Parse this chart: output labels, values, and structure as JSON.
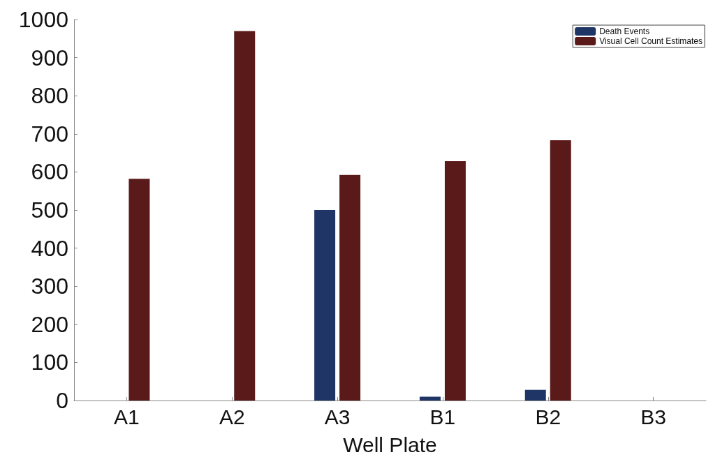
{
  "chart_data": {
    "type": "bar",
    "xlabel": "Well Plate",
    "categories": [
      "A1",
      "A2",
      "A3",
      "B1",
      "B2",
      "B3"
    ],
    "series": [
      {
        "name": "Death Events",
        "color": "#1f3566",
        "values": [
          0,
          0,
          500,
          10,
          28,
          0
        ]
      },
      {
        "name": "Visual Cell Count Estimates",
        "color": "#5a1a1a",
        "values": [
          582,
          970,
          592,
          628,
          683,
          0
        ]
      }
    ],
    "ylim": [
      0,
      1000
    ],
    "yticks": [
      0,
      100,
      200,
      300,
      400,
      500,
      600,
      700,
      800,
      900,
      1000
    ],
    "grid": false,
    "legend": "top right"
  }
}
